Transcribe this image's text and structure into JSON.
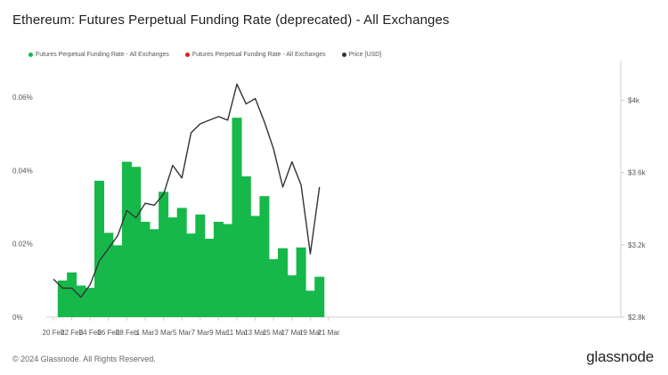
{
  "title": "Ethereum: Futures Perpetual Funding Rate (deprecated) - All Exchanges",
  "legend": [
    {
      "label": "Futures Perpetual Funding Rate - All Exchanges",
      "color": "#16b84a"
    },
    {
      "label": "Futures Perpetual Funding Rate - All Exchanges",
      "color": "#e31d1d"
    },
    {
      "label": "Price [USD]",
      "color": "#333333"
    }
  ],
  "footer": {
    "copyright": "© 2024 Glassnode. All Rights Reserved.",
    "brand": "glassnode"
  },
  "chart_data": {
    "type": "bar",
    "x_start": "20 Feb",
    "x_tick_labels": [
      "20 Feb",
      "22 Feb",
      "24 Feb",
      "26 Feb",
      "28 Feb",
      "1 Mar",
      "3 Mar",
      "5 Mar",
      "7 Mar",
      "9 Mar",
      "11 Mar",
      "13 Mar",
      "15 Mar",
      "17 Mar",
      "19 Mar",
      "21 Mar"
    ],
    "y_left_ticks": [
      "0%",
      "0.02%",
      "0.04%",
      "0.06%"
    ],
    "y_left_range": [
      0,
      0.07
    ],
    "y_right_ticks": [
      "$2.8k",
      "$3.2k",
      "$3.6k",
      "$4k"
    ],
    "y_right_range": [
      2800,
      4220
    ],
    "bar_color": "#16b84a",
    "line_color": "#333333",
    "series": [
      {
        "name": "Futures Perpetual Funding Rate - All Exchanges",
        "type": "bar",
        "x": [
          "21 Feb",
          "22 Feb",
          "23 Feb",
          "24 Feb",
          "25 Feb",
          "26 Feb",
          "27 Feb",
          "28 Feb",
          "29 Feb",
          "1 Mar",
          "2 Mar",
          "3 Mar",
          "4 Mar",
          "5 Mar",
          "6 Mar",
          "7 Mar",
          "8 Mar",
          "9 Mar",
          "10 Mar",
          "11 Mar",
          "12 Mar",
          "13 Mar",
          "14 Mar",
          "15 Mar",
          "16 Mar",
          "17 Mar",
          "18 Mar",
          "19 Mar",
          "20 Mar"
        ],
        "values": [
          0.01,
          0.0122,
          0.0086,
          0.008,
          0.0372,
          0.023,
          0.0196,
          0.0424,
          0.041,
          0.026,
          0.024,
          0.0342,
          0.0272,
          0.0298,
          0.0228,
          0.028,
          0.0214,
          0.026,
          0.0254,
          0.0544,
          0.0384,
          0.0276,
          0.033,
          0.0158,
          0.0188,
          0.0114,
          0.019,
          0.0072,
          0.011
        ]
      },
      {
        "name": "Price [USD]",
        "type": "line",
        "x": [
          "20 Feb",
          "21 Feb",
          "22 Feb",
          "23 Feb",
          "24 Feb",
          "25 Feb",
          "26 Feb",
          "27 Feb",
          "28 Feb",
          "29 Feb",
          "1 Mar",
          "2 Mar",
          "3 Mar",
          "4 Mar",
          "5 Mar",
          "6 Mar",
          "7 Mar",
          "8 Mar",
          "9 Mar",
          "10 Mar",
          "11 Mar",
          "12 Mar",
          "13 Mar",
          "14 Mar",
          "15 Mar",
          "16 Mar",
          "17 Mar",
          "18 Mar",
          "19 Mar",
          "20 Mar"
        ],
        "values": [
          3010,
          2960,
          2960,
          2910,
          2980,
          3110,
          3180,
          3250,
          3390,
          3350,
          3430,
          3420,
          3480,
          3640,
          3570,
          3820,
          3870,
          3890,
          3910,
          3890,
          4090,
          3980,
          4010,
          3880,
          3730,
          3520,
          3660,
          3530,
          3150,
          3520
        ]
      }
    ]
  }
}
